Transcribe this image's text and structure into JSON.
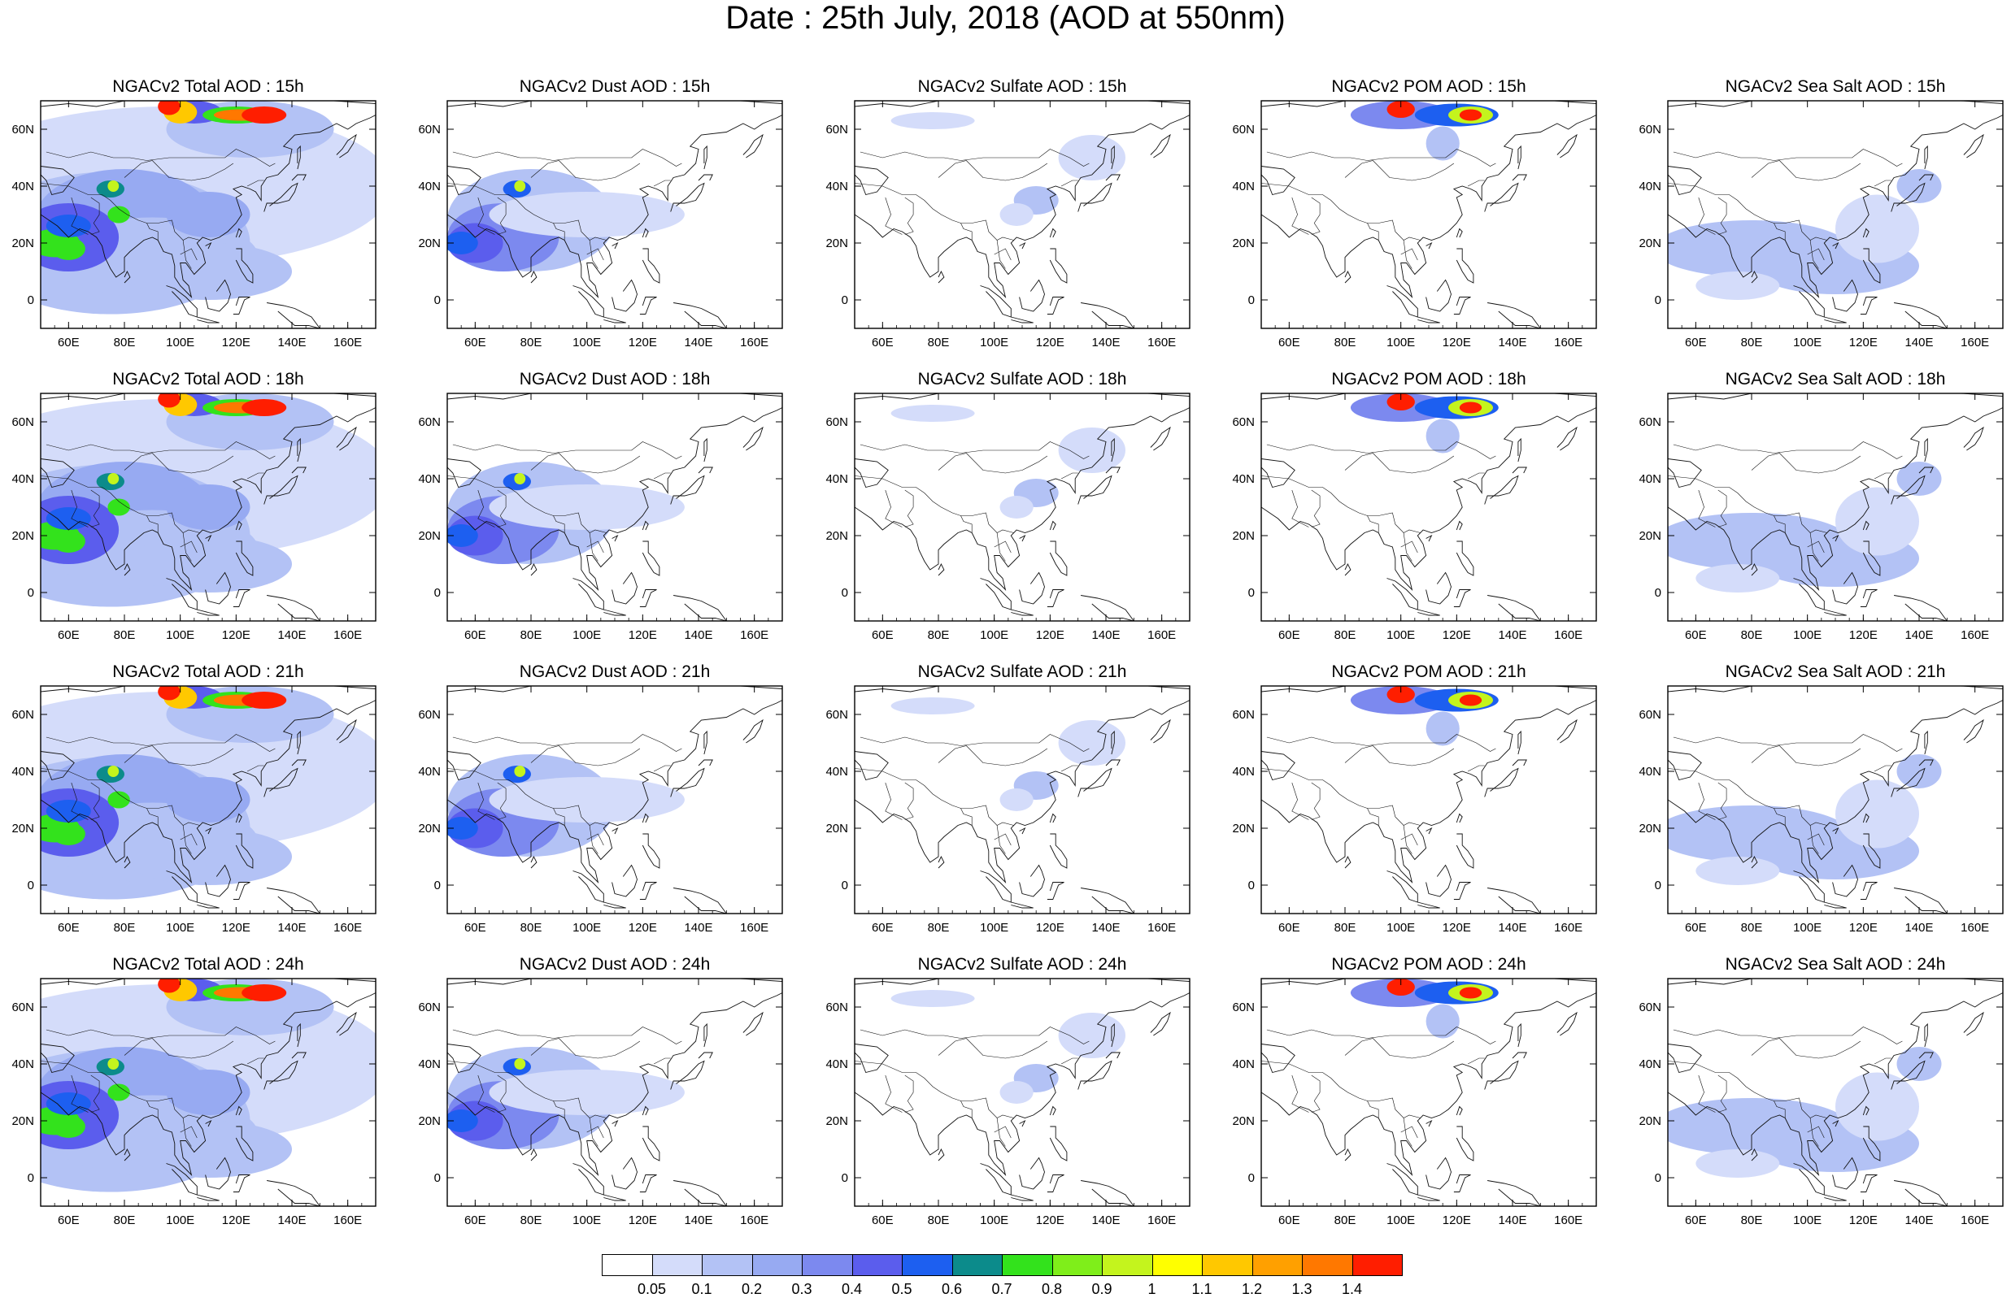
{
  "title": "Date : 25th July, 2018 (AOD at 550nm)",
  "panels": [
    [
      "NGACv2 Total AOD : 15h",
      "NGACv2 Dust AOD : 15h",
      "NGACv2 Sulfate AOD : 15h",
      "NGACv2 POM AOD : 15h",
      "NGACv2 Sea Salt AOD : 15h"
    ],
    [
      "NGACv2 Total AOD : 18h",
      "NGACv2 Dust AOD : 18h",
      "NGACv2 Sulfate AOD : 18h",
      "NGACv2 POM AOD : 18h",
      "NGACv2 Sea Salt AOD : 18h"
    ],
    [
      "NGACv2 Total AOD : 21h",
      "NGACv2 Dust AOD : 21h",
      "NGACv2 Sulfate AOD : 21h",
      "NGACv2 POM AOD : 21h",
      "NGACv2 Sea Salt AOD : 21h"
    ],
    [
      "NGACv2 Total AOD : 24h",
      "NGACv2 Dust AOD : 24h",
      "NGACv2 Sulfate AOD : 24h",
      "NGACv2 POM AOD : 24h",
      "NGACv2 Sea Salt  AOD : 24h"
    ]
  ],
  "lon_ticks": [
    "60E",
    "80E",
    "100E",
    "120E",
    "140E",
    "160E"
  ],
  "lat_ticks": [
    "60N",
    "40N",
    "20N",
    "0"
  ],
  "map_extent": {
    "lon_range": [
      50,
      170
    ],
    "lat_range": [
      -10,
      70
    ]
  },
  "colorbar": {
    "labels": [
      "0.05",
      "0.1",
      "0.2",
      "0.3",
      "0.4",
      "0.5",
      "0.6",
      "0.7",
      "0.8",
      "0.9",
      "1",
      "1.1",
      "1.2",
      "1.3",
      "1.4"
    ],
    "colors": [
      "#ffffff",
      "#d4dcfa",
      "#b3c2f5",
      "#97aaf2",
      "#7c89ef",
      "#5b5ded",
      "#1d5ff0",
      "#0c8b8b",
      "#33e21c",
      "#7fee1a",
      "#c4f41d",
      "#ffff00",
      "#ffc800",
      "#ffa000",
      "#ff7800",
      "#ff1e00"
    ]
  }
}
